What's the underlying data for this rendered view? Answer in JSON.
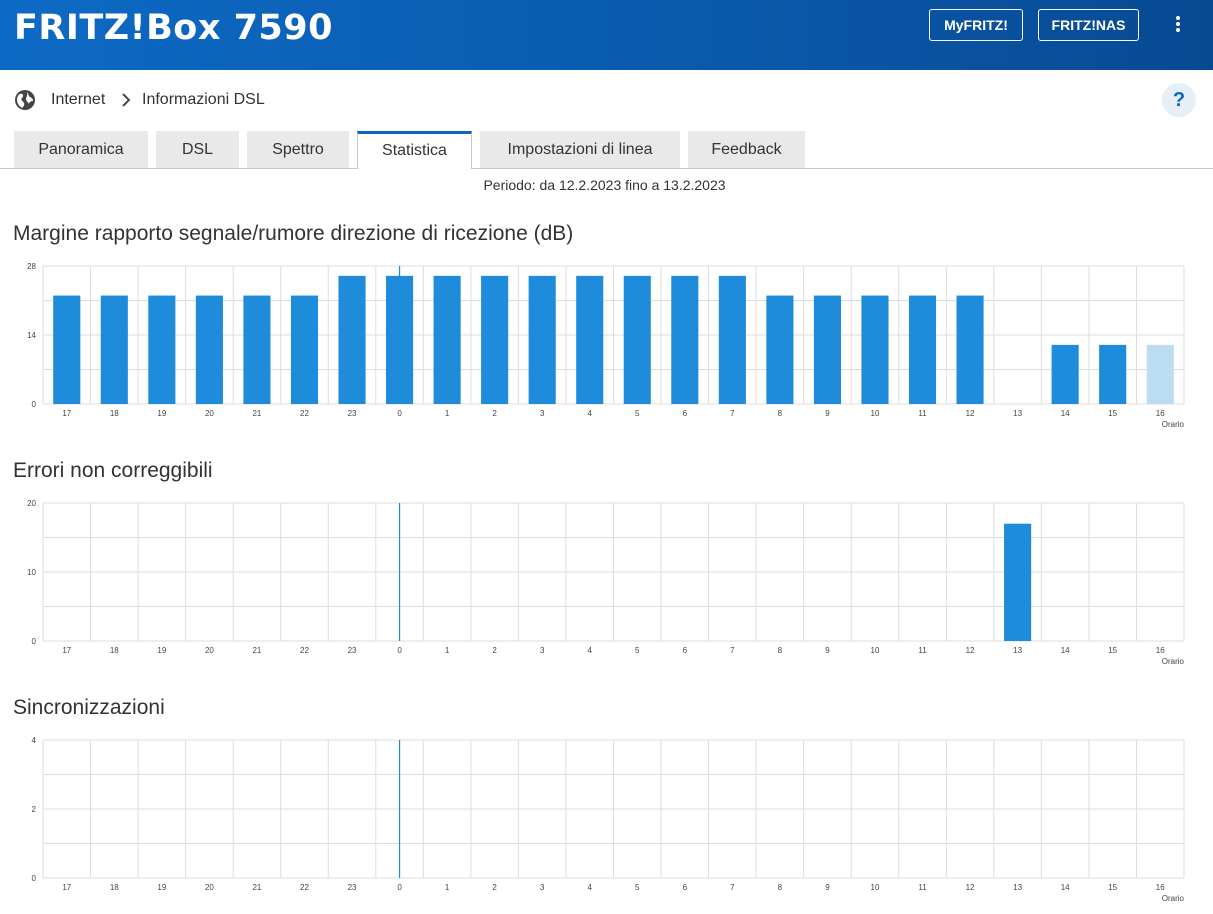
{
  "header": {
    "brand": "FRITZ!Box 7590",
    "myfritz_label": "MyFRITZ!",
    "fritznas_label": "FRITZ!NAS",
    "menu_icon": "kebab-menu-icon"
  },
  "breadcrumb": {
    "icon": "globe-icon",
    "items": [
      "Internet",
      "Informazioni DSL"
    ],
    "separator_icon": "chevron-right-icon"
  },
  "help_label": "?",
  "tabs": [
    {
      "label": "Panoramica"
    },
    {
      "label": "DSL"
    },
    {
      "label": "Spettro"
    },
    {
      "label": "Statistica",
      "active": true
    },
    {
      "label": "Impostazioni di linea"
    },
    {
      "label": "Feedback"
    }
  ],
  "period": "Periodo: da 12.2.2023 fino a 13.2.2023",
  "colors": {
    "accent": "#0a66c2",
    "bar": "#1e8bdb",
    "bar_partial": "#bcdcf2",
    "grid": "#dddddd",
    "now_line": "#1e8bdb"
  },
  "chart_data": [
    {
      "type": "bar",
      "title": "Margine rapporto segnale/rumore direzione di ricezione (dB)",
      "xlabel": "Orario",
      "ylabel": "",
      "categories": [
        "17",
        "18",
        "19",
        "20",
        "21",
        "22",
        "23",
        "0",
        "1",
        "2",
        "3",
        "4",
        "5",
        "6",
        "7",
        "8",
        "9",
        "10",
        "11",
        "12",
        "13",
        "14",
        "15",
        "16"
      ],
      "values": [
        22,
        22,
        22,
        22,
        22,
        22,
        26,
        26,
        26,
        26,
        26,
        26,
        26,
        26,
        26,
        22,
        22,
        22,
        22,
        22,
        0,
        12,
        12,
        12
      ],
      "partial_index": 23,
      "yticks": [
        0,
        14,
        28
      ],
      "ylim": [
        0,
        28
      ],
      "now_marker": "0",
      "grid": true
    },
    {
      "type": "bar",
      "title": "Errori non correggibili",
      "xlabel": "Orario",
      "ylabel": "",
      "categories": [
        "17",
        "18",
        "19",
        "20",
        "21",
        "22",
        "23",
        "0",
        "1",
        "2",
        "3",
        "4",
        "5",
        "6",
        "7",
        "8",
        "9",
        "10",
        "11",
        "12",
        "13",
        "14",
        "15",
        "16"
      ],
      "values": [
        0,
        0,
        0,
        0,
        0,
        0,
        0,
        0,
        0,
        0,
        0,
        0,
        0,
        0,
        0,
        0,
        0,
        0,
        0,
        0,
        17,
        0,
        0,
        0
      ],
      "yticks": [
        0,
        10,
        20
      ],
      "ylim": [
        0,
        20
      ],
      "now_marker": "0",
      "grid": true
    },
    {
      "type": "bar",
      "title": "Sincronizzazioni",
      "xlabel": "Orario",
      "ylabel": "",
      "categories": [
        "17",
        "18",
        "19",
        "20",
        "21",
        "22",
        "23",
        "0",
        "1",
        "2",
        "3",
        "4",
        "5",
        "6",
        "7",
        "8",
        "9",
        "10",
        "11",
        "12",
        "13",
        "14",
        "15",
        "16"
      ],
      "values": [
        0,
        0,
        0,
        0,
        0,
        0,
        0,
        0,
        0,
        0,
        0,
        0,
        0,
        0,
        0,
        0,
        0,
        0,
        0,
        0,
        0,
        0,
        0,
        0
      ],
      "yticks": [
        0,
        2,
        4
      ],
      "ylim": [
        0,
        4
      ],
      "now_marker": "0",
      "grid": true
    }
  ]
}
